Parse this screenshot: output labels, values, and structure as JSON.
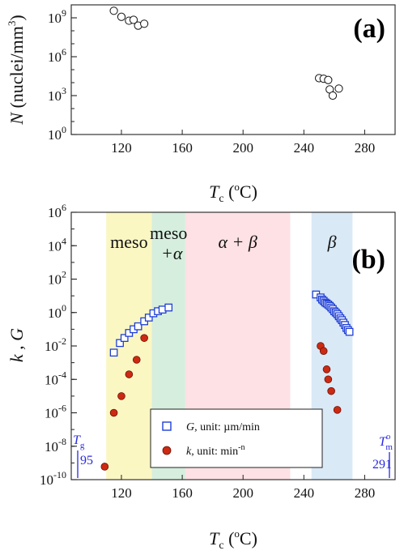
{
  "colors": {
    "meso_region": "#fbf7c3",
    "meso_alpha_region": "#d6eedd",
    "alpha_beta_region": "#fde1e4",
    "beta_region": "#dae9f6",
    "G_marker": "#1f3fd6",
    "k_marker": "#cc2a12",
    "annotation": "#2a2ae0"
  },
  "chart_data": [
    {
      "panel": "a",
      "panel_label": "(a)",
      "type": "scatter",
      "xlabel": {
        "symbol": "T",
        "sub": "c",
        "open": " (",
        "sup": "o",
        "close": "C)"
      },
      "ylabel": {
        "symbol": "N",
        "unit": " (nuclei/mm",
        "sup": "3",
        "close": ")"
      },
      "xlim": [
        87,
        300
      ],
      "ylim": [
        1,
        10000000000.0
      ],
      "yscale": "log",
      "xticks": [
        120,
        160,
        200,
        240,
        280
      ],
      "xtick_labels": [
        "120",
        "160",
        "200",
        "240",
        "280"
      ],
      "yticks": [
        1,
        1000,
        1000000,
        1000000000
      ],
      "ytick_labels": [
        {
          "base": "10",
          "exp": "0"
        },
        {
          "base": "10",
          "exp": "3"
        },
        {
          "base": "10",
          "exp": "6"
        },
        {
          "base": "10",
          "exp": "9"
        }
      ],
      "grid": false,
      "series": [
        {
          "marker": "open-circle",
          "points": [
            [
              115,
              3500000000.0
            ],
            [
              120,
              1200000000.0
            ],
            [
              125,
              600000000.0
            ],
            [
              128,
              700000000.0
            ],
            [
              131,
              250000000.0
            ],
            [
              135,
              350000000.0
            ],
            [
              250,
              22000.0
            ],
            [
              253,
              20000.0
            ],
            [
              256,
              16000.0
            ],
            [
              257,
              3000.0
            ],
            [
              259,
              1000.0
            ],
            [
              263,
              3500.0
            ]
          ]
        }
      ]
    },
    {
      "panel": "b",
      "panel_label": "(b)",
      "type": "scatter",
      "xlabel": {
        "symbol": "T",
        "sub": "c",
        "open": " (",
        "sup": "o",
        "close": "C)"
      },
      "ylabel": {
        "text": "k , G"
      },
      "xlim": [
        87,
        300
      ],
      "ylim": [
        1e-10,
        1000000.0
      ],
      "yscale": "log",
      "xticks": [
        120,
        160,
        200,
        240,
        280
      ],
      "xtick_labels": [
        "120",
        "160",
        "200",
        "240",
        "280"
      ],
      "yticks": [
        1e-10,
        1e-08,
        1e-06,
        0.0001,
        0.01,
        1,
        100,
        10000,
        1000000
      ],
      "ytick_labels": [
        {
          "base": "10",
          "exp": "-10"
        },
        {
          "base": "10",
          "exp": "-8"
        },
        {
          "base": "10",
          "exp": "-6"
        },
        {
          "base": "10",
          "exp": "-4"
        },
        {
          "base": "10",
          "exp": "-2"
        },
        {
          "base": "10",
          "exp": "0"
        },
        {
          "base": "10",
          "exp": "2"
        },
        {
          "base": "10",
          "exp": "4"
        },
        {
          "base": "10",
          "exp": "6"
        }
      ],
      "grid": false,
      "regions": [
        {
          "x": [
            110,
            140
          ],
          "color_key": "meso_region",
          "label_lines": [
            "meso"
          ]
        },
        {
          "x": [
            140,
            162
          ],
          "color_key": "meso_alpha_region",
          "label_lines": [
            "meso",
            "+α"
          ]
        },
        {
          "x": [
            162,
            231
          ],
          "color_key": "alpha_beta_region",
          "label_lines": [
            "α + β"
          ]
        },
        {
          "x": [
            245,
            272
          ],
          "color_key": "beta_region",
          "label_lines": [
            "β"
          ]
        }
      ],
      "legend": {
        "position": "bottom-center",
        "entries": [
          {
            "series": "G",
            "symbol": "G",
            "text": ", unit: µm/min"
          },
          {
            "series": "k",
            "symbol": "k",
            "text": ", unit: min",
            "sup": "-n"
          }
        ]
      },
      "annotations": [
        {
          "symbol": "T",
          "sub": "g",
          "value": "95",
          "x": 95
        },
        {
          "symbol": "T",
          "sup": "o",
          "sub": "m",
          "value": "291",
          "x": 291
        }
      ],
      "series": [
        {
          "key": "G",
          "marker": "open-square",
          "points": [
            [
              115,
              0.004
            ],
            [
              119,
              0.015
            ],
            [
              122,
              0.03
            ],
            [
              125,
              0.06
            ],
            [
              128,
              0.1
            ],
            [
              131,
              0.15
            ],
            [
              135,
              0.3
            ],
            [
              138,
              0.5
            ],
            [
              141,
              0.9
            ],
            [
              144,
              1.2
            ],
            [
              147,
              1.5
            ],
            [
              151,
              2.0
            ],
            [
              248,
              12
            ],
            [
              251,
              8
            ],
            [
              252,
              6
            ],
            [
              253,
              5
            ],
            [
              254,
              4
            ],
            [
              255,
              3.5
            ],
            [
              256,
              3
            ],
            [
              257,
              2.5
            ],
            [
              258,
              2.0
            ],
            [
              259,
              1.6
            ],
            [
              260,
              1.2
            ],
            [
              261,
              1.0
            ],
            [
              262,
              0.8
            ],
            [
              263,
              0.6
            ],
            [
              264,
              0.45
            ],
            [
              265,
              0.35
            ],
            [
              266,
              0.25
            ],
            [
              267,
              0.18
            ],
            [
              268,
              0.12
            ],
            [
              269,
              0.09
            ],
            [
              270,
              0.07
            ]
          ]
        },
        {
          "key": "k",
          "marker": "filled-circle",
          "points": [
            [
              109,
              6e-10
            ],
            [
              115,
              1e-06
            ],
            [
              120,
              1e-05
            ],
            [
              125,
              0.0002
            ],
            [
              130,
              0.0015
            ],
            [
              135,
              0.03
            ],
            [
              251,
              0.01
            ],
            [
              253,
              0.005
            ],
            [
              255,
              0.0004
            ],
            [
              256,
              0.0001
            ],
            [
              258,
              2e-05
            ],
            [
              262,
              1.5e-06
            ]
          ]
        }
      ]
    }
  ]
}
